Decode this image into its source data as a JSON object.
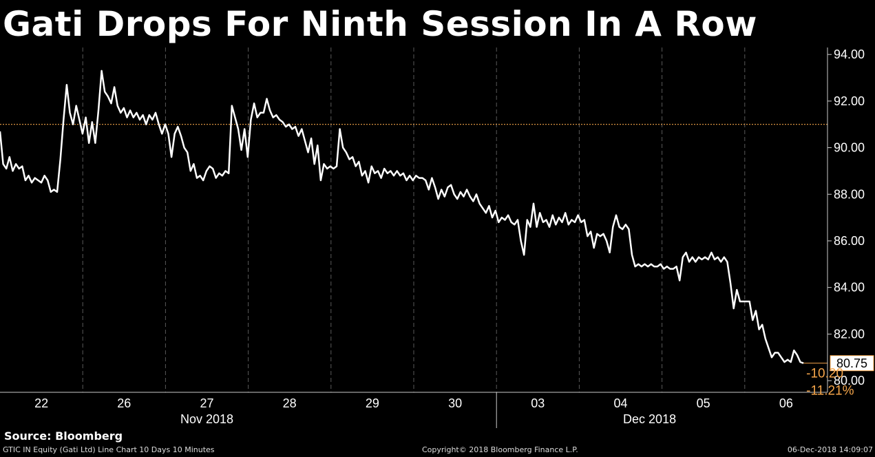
{
  "title": "Gati Drops For Ninth Session In A Row",
  "source": "Source: Bloomberg",
  "footer": {
    "left": "GTIC IN Equity (Gati Ltd) Line Chart 10 Days 10 Minutes",
    "center": "Copyright© 2018 Bloomberg Finance L.P.",
    "right": "06-Dec-2018 14:09:07"
  },
  "colors": {
    "background": "#000000",
    "line": "#ffffff",
    "reference": "#f5a54a",
    "change_text": "#f5a54a"
  },
  "chart_data": {
    "type": "line",
    "title": "Gati Drops For Ninth Session In A Row",
    "y_axis_side": "right",
    "ylim": [
      79.5,
      94.3
    ],
    "y_ticks": [
      "94.00",
      "92.00",
      "90.00",
      "88.00",
      "86.00",
      "84.00",
      "82.00",
      "80.00"
    ],
    "day_labels": [
      "22",
      "26",
      "27",
      "28",
      "29",
      "30",
      "03",
      "04",
      "05",
      "06"
    ],
    "month_labels": [
      "Nov 2018",
      "Dec 2018"
    ],
    "grid": "dashed vertical lines between sessions",
    "reference_line": {
      "value": 91.0
    },
    "last_value": "80.75",
    "change": "-10.20",
    "change_pct": "-11.21%",
    "series": [
      {
        "values": [
          90.7,
          89.3,
          89.1,
          89.6,
          89.0,
          89.3,
          89.1,
          89.2,
          88.6,
          88.8,
          88.5,
          88.7,
          88.6,
          88.5,
          88.8,
          88.6,
          88.1,
          88.2,
          88.1,
          89.5,
          91.2,
          92.7,
          91.5,
          91.0,
          91.8,
          91.2,
          90.6,
          91.3,
          90.2,
          91.1,
          90.2,
          91.6,
          93.3,
          92.4,
          92.2,
          91.9,
          92.6,
          91.8,
          91.5,
          91.7,
          91.3,
          91.6,
          91.3,
          91.5,
          91.2,
          91.4,
          91.0,
          91.4,
          91.2,
          91.5,
          91.0,
          90.6,
          91.0,
          90.6,
          89.6,
          90.6,
          90.9,
          90.5,
          90.0,
          89.8,
          89.0,
          89.3,
          88.7,
          88.8,
          88.6,
          89.0,
          89.2,
          89.1,
          88.7,
          88.9,
          88.8,
          89.0,
          88.9,
          91.8,
          91.3,
          90.8,
          89.9,
          90.8,
          89.6,
          91.2,
          91.9,
          91.3,
          91.5,
          91.5,
          92.1,
          91.6,
          91.3,
          91.4,
          91.2,
          91.1,
          90.9,
          91.0,
          90.8,
          90.9,
          90.5,
          90.8,
          90.3,
          89.8,
          90.4,
          89.3,
          90.1,
          88.6,
          89.3,
          89.1,
          89.2,
          89.1,
          89.2,
          90.8,
          90.0,
          89.8,
          89.5,
          89.6,
          89.2,
          89.4,
          88.8,
          89.0,
          88.5,
          89.2,
          88.9,
          89.0,
          88.7,
          89.1,
          88.9,
          89.0,
          88.8,
          89.0,
          88.8,
          88.9,
          88.6,
          88.8,
          88.6,
          88.8,
          88.7,
          88.7,
          88.6,
          88.2,
          88.7,
          88.3,
          87.8,
          88.2,
          87.9,
          88.3,
          88.4,
          88.0,
          87.8,
          88.1,
          87.9,
          88.2,
          87.9,
          87.7,
          88.0,
          87.6,
          87.4,
          87.2,
          87.5,
          87.0,
          87.3,
          86.8,
          87.0,
          86.9,
          87.1,
          86.8,
          86.7,
          86.9,
          86.0,
          85.4,
          86.9,
          86.6,
          87.6,
          86.6,
          87.2,
          86.8,
          86.9,
          86.6,
          87.1,
          86.7,
          87.0,
          86.8,
          87.2,
          86.7,
          86.9,
          86.8,
          87.1,
          86.8,
          86.9,
          86.2,
          86.4,
          85.7,
          86.3,
          86.2,
          86.3,
          86.0,
          85.5,
          86.6,
          87.1,
          86.6,
          86.5,
          86.7,
          86.5,
          85.4,
          84.9,
          85.0,
          84.9,
          85.0,
          84.9,
          85.0,
          84.9,
          84.9,
          85.0,
          84.8,
          84.9,
          84.8,
          84.8,
          84.9,
          84.3,
          85.3,
          85.5,
          85.1,
          85.3,
          85.1,
          85.3,
          85.2,
          85.3,
          85.2,
          85.5,
          85.2,
          85.3,
          85.1,
          85.3,
          85.1,
          84.2,
          83.1,
          83.9,
          83.4,
          83.4,
          83.4,
          83.4,
          82.6,
          83.0,
          82.2,
          82.4,
          81.8,
          81.4,
          81.0,
          81.2,
          81.2,
          81.0,
          80.8,
          80.9,
          80.8,
          81.3,
          81.1,
          80.8,
          80.75
        ]
      }
    ]
  }
}
